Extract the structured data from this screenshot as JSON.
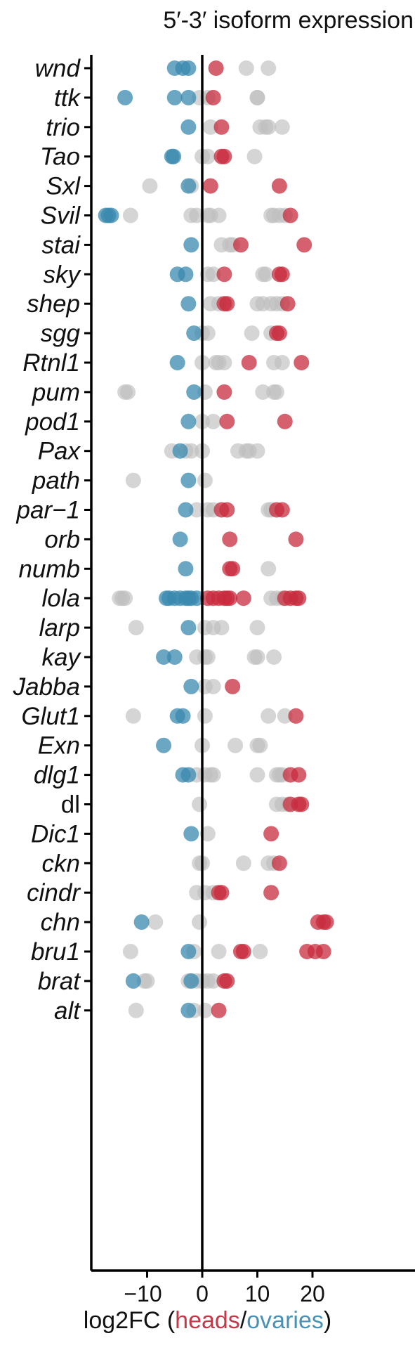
{
  "chart_data": {
    "type": "scatter",
    "title": "5′-3′ isoform expression",
    "xlabel": {
      "prefix": "log2FC (",
      "heads": "heads",
      "sep": "/",
      "ovaries": "ovaries",
      "suffix": ")"
    },
    "xlim": [
      -20,
      24
    ],
    "xticks": [
      -10,
      0,
      10,
      20
    ],
    "xtick_labels": [
      "−10",
      "0",
      "10",
      "20"
    ],
    "zero_line": true,
    "grid": false,
    "colors": {
      "heads": "#c72b3e",
      "ovaries": "#3a88ad",
      "not_significant": "#bfbfbf"
    },
    "genes": [
      {
        "label": "wnd",
        "italic": true,
        "heads": [
          2.5
        ],
        "ovaries": [
          -5,
          -3.5,
          -2.5
        ],
        "ns": [
          8,
          12
        ]
      },
      {
        "label": "ttk",
        "italic": true,
        "heads": [
          2
        ],
        "ovaries": [
          -14,
          -5,
          -2.5
        ],
        "ns": [
          -0.5,
          1,
          10,
          10
        ]
      },
      {
        "label": "trio",
        "italic": true,
        "heads": [
          3.5
        ],
        "ovaries": [
          -2.5
        ],
        "ns": [
          1.5,
          10.5,
          11.5,
          12,
          14.5
        ]
      },
      {
        "label": "Tao",
        "italic": true,
        "heads": [
          3.5,
          4
        ],
        "ovaries": [
          -5.5,
          -5.2
        ],
        "ns": [
          0,
          1,
          9.5
        ]
      },
      {
        "label": "Sxl",
        "italic": true,
        "heads": [
          1.5,
          14
        ],
        "ovaries": [
          -2.5
        ],
        "ns": [
          -9.5,
          -2
        ]
      },
      {
        "label": "Svil",
        "italic": true,
        "heads": [
          16
        ],
        "ovaries": [
          -17.5,
          -17,
          -16.5
        ],
        "ns": [
          -13,
          -2,
          -1,
          1,
          1.5,
          3,
          12.5,
          13,
          14,
          15
        ]
      },
      {
        "label": "stai",
        "italic": true,
        "heads": [
          7,
          18.5
        ],
        "ovaries": [
          -2
        ],
        "ns": [
          3.5,
          5,
          5.5
        ]
      },
      {
        "label": "sky",
        "italic": true,
        "heads": [
          4,
          14,
          14.5
        ],
        "ovaries": [
          -4.5,
          -3
        ],
        "ns": [
          1,
          2,
          11,
          11.5
        ]
      },
      {
        "label": "shep",
        "italic": true,
        "heads": [
          4,
          4.5,
          15.5
        ],
        "ovaries": [
          -2.5
        ],
        "ns": [
          1.5,
          3,
          10,
          11,
          12.5,
          13.5,
          14.5
        ]
      },
      {
        "label": "sgg",
        "italic": true,
        "heads": [
          13.5,
          14
        ],
        "ovaries": [
          -1.5
        ],
        "ns": [
          0,
          1,
          9,
          12.5
        ]
      },
      {
        "label": "Rtnl1",
        "italic": true,
        "heads": [
          8.5,
          18
        ],
        "ovaries": [
          -4.5
        ],
        "ns": [
          0,
          2.5,
          3,
          4,
          13,
          14.5
        ]
      },
      {
        "label": "pum",
        "italic": true,
        "heads": [
          4
        ],
        "ovaries": [
          -1.5
        ],
        "ns": [
          -14,
          -13.5,
          0.5,
          11,
          13,
          13.5
        ]
      },
      {
        "label": "pod1",
        "italic": true,
        "heads": [
          4.5,
          15
        ],
        "ovaries": [
          -2.5
        ],
        "ns": [
          0,
          2
        ]
      },
      {
        "label": "Pax",
        "italic": true,
        "heads": [],
        "ovaries": [
          -4
        ],
        "ns": [
          -5.5,
          -3,
          -2,
          0,
          6.5,
          8,
          8.5,
          10
        ]
      },
      {
        "label": "path",
        "italic": true,
        "heads": [],
        "ovaries": [
          -2.5
        ],
        "ns": [
          -12.5,
          0.5
        ]
      },
      {
        "label": "par−1",
        "italic": true,
        "heads": [
          3.5,
          4.5,
          13.5,
          14.5
        ],
        "ovaries": [
          -3
        ],
        "ns": [
          -1,
          1,
          2,
          12,
          12.5
        ]
      },
      {
        "label": "orb",
        "italic": true,
        "heads": [
          5,
          17
        ],
        "ovaries": [
          -4
        ],
        "ns": []
      },
      {
        "label": "numb",
        "italic": true,
        "heads": [
          5,
          5.5
        ],
        "ovaries": [
          -3
        ],
        "ns": [
          12
        ]
      },
      {
        "label": "lola",
        "italic": true,
        "heads": [
          1,
          2,
          3,
          4,
          4.5,
          5,
          7.5,
          15,
          16,
          17,
          17.5
        ],
        "ovaries": [
          -6.5,
          -6,
          -5,
          -4,
          -3,
          -2.5,
          -2,
          -1
        ],
        "ns": [
          -15,
          -14.5,
          -14,
          12.5,
          13.5,
          14.5
        ]
      },
      {
        "label": "larp",
        "italic": true,
        "heads": [],
        "ovaries": [
          -2.5
        ],
        "ns": [
          -12,
          0.5,
          2,
          3.5,
          10
        ]
      },
      {
        "label": "kay",
        "italic": true,
        "heads": [],
        "ovaries": [
          -7,
          -5
        ],
        "ns": [
          -1,
          0.5,
          1,
          9.5,
          10,
          13
        ]
      },
      {
        "label": "Jabba",
        "italic": true,
        "heads": [
          5.5
        ],
        "ovaries": [
          -2
        ],
        "ns": [
          0.5,
          2
        ]
      },
      {
        "label": "Glut1",
        "italic": true,
        "heads": [
          17
        ],
        "ovaries": [
          -4.5,
          -3.5
        ],
        "ns": [
          -12.5,
          0.5,
          12,
          15
        ]
      },
      {
        "label": "Exn",
        "italic": true,
        "heads": [],
        "ovaries": [
          -7
        ],
        "ns": [
          0,
          6,
          10,
          10.5
        ]
      },
      {
        "label": "dlg1",
        "italic": true,
        "heads": [
          16,
          17.5
        ],
        "ovaries": [
          -3.5,
          -2.5
        ],
        "ns": [
          -1,
          0.5,
          1.5,
          2,
          10,
          13.5,
          14,
          14.5
        ]
      },
      {
        "label": "dl",
        "italic": false,
        "heads": [
          16,
          17.5,
          18
        ],
        "ovaries": [],
        "ns": [
          -0.5,
          13.5,
          14.5,
          15.5
        ]
      },
      {
        "label": "Dic1",
        "italic": true,
        "heads": [
          12.5
        ],
        "ovaries": [
          -2
        ],
        "ns": [
          1
        ]
      },
      {
        "label": "ckn",
        "italic": true,
        "heads": [
          14
        ],
        "ovaries": [],
        "ns": [
          -0.5,
          0,
          7.5,
          12,
          13
        ]
      },
      {
        "label": "cindr",
        "italic": true,
        "heads": [
          3,
          3.5,
          12.5
        ],
        "ovaries": [],
        "ns": [
          -1,
          0.5,
          2
        ]
      },
      {
        "label": "chn",
        "italic": true,
        "heads": [
          21,
          22,
          22.5
        ],
        "ovaries": [
          -11
        ],
        "ns": [
          -8.5,
          -0.5
        ]
      },
      {
        "label": "bru1",
        "italic": true,
        "heads": [
          7,
          7.5,
          19,
          20.5,
          22
        ],
        "ovaries": [
          -2.5
        ],
        "ns": [
          -13,
          -1.5,
          3,
          10.5
        ]
      },
      {
        "label": "brat",
        "italic": true,
        "heads": [
          4,
          4.5
        ],
        "ovaries": [
          -12.5,
          -2
        ],
        "ns": [
          -10.5,
          -10,
          -2.5,
          -1,
          0,
          1,
          2
        ]
      },
      {
        "label": "alt",
        "italic": true,
        "heads": [
          3
        ],
        "ovaries": [
          -2.5
        ],
        "ns": [
          -12,
          -1.5,
          0.5
        ]
      }
    ]
  }
}
